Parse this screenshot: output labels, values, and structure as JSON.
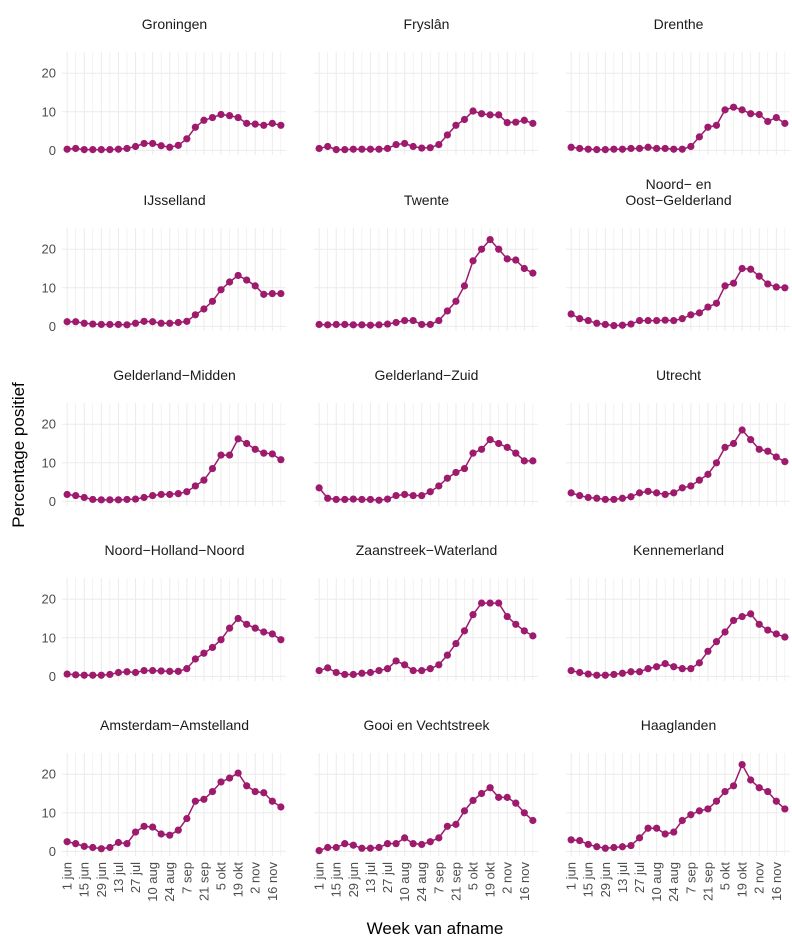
{
  "chart_data": {
    "type": "line",
    "x_label": "Week van afname",
    "y_label": "Percentage positief",
    "categories": [
      "1 jun",
      null,
      "15 jun",
      null,
      "29 jun",
      null,
      "13 jul",
      null,
      "27 jul",
      null,
      "10 aug",
      null,
      "24 aug",
      null,
      "7 sep",
      null,
      "21 sep",
      null,
      "5 okt",
      null,
      "19 okt",
      null,
      "2 nov",
      null,
      "16 nov",
      null
    ],
    "ylim": [
      -1.2,
      25.5
    ],
    "yticks": [
      0,
      10,
      20
    ],
    "grid": true,
    "color": "#9e1a6c",
    "panels": [
      {
        "title": "Groningen",
        "values": [
          0.3,
          0.5,
          0.2,
          0.2,
          0.2,
          0.2,
          0.3,
          0.5,
          1,
          1.8,
          1.8,
          1.2,
          0.8,
          1.3,
          3,
          6,
          7.8,
          8.5,
          9.3,
          9,
          8.5,
          7,
          6.8,
          6.5,
          7,
          6.5
        ]
      },
      {
        "title": "Fryslân",
        "values": [
          0.5,
          1,
          0.2,
          0.2,
          0.3,
          0.3,
          0.3,
          0.3,
          0.5,
          1.5,
          1.8,
          1,
          0.6,
          0.7,
          1.5,
          4,
          6.5,
          8,
          10.2,
          9.5,
          9.2,
          9.2,
          7.2,
          7.3,
          7.8,
          7
        ]
      },
      {
        "title": "Drenthe",
        "values": [
          0.8,
          0.5,
          0.3,
          0.2,
          0.2,
          0.3,
          0.3,
          0.5,
          0.5,
          0.8,
          0.5,
          0.5,
          0.3,
          0.3,
          1,
          3.5,
          6,
          6.5,
          10.5,
          11.2,
          10.5,
          9.5,
          9.3,
          7.5,
          8.5,
          7
        ]
      },
      {
        "title": "IJsselland",
        "values": [
          1.2,
          1.2,
          0.8,
          0.6,
          0.5,
          0.5,
          0.5,
          0.4,
          0.8,
          1.3,
          1.2,
          0.8,
          0.8,
          1,
          1.3,
          3,
          4.5,
          6.5,
          9.5,
          11.5,
          13.2,
          12,
          10.5,
          8.3,
          8.5,
          8.5
        ]
      },
      {
        "title": "Twente",
        "values": [
          0.5,
          0.4,
          0.5,
          0.5,
          0.4,
          0.4,
          0.3,
          0.4,
          0.6,
          1,
          1.5,
          1.5,
          0.5,
          0.5,
          1.5,
          4,
          6.5,
          10.5,
          17,
          20,
          22.5,
          20,
          17.5,
          17.2,
          15,
          13.8
        ]
      },
      {
        "title": "Noord− en\nOost−Gelderland",
        "values": [
          3.2,
          2,
          1.5,
          0.8,
          0.5,
          0.2,
          0.3,
          0.6,
          1.5,
          1.5,
          1.5,
          1.6,
          1.5,
          2,
          3,
          3.5,
          5,
          6,
          10.5,
          11.2,
          15,
          14.8,
          13,
          11,
          10.2,
          10
        ]
      },
      {
        "title": "Gelderland−Midden",
        "values": [
          1.8,
          1.5,
          1,
          0.5,
          0.4,
          0.4,
          0.4,
          0.5,
          0.6,
          1,
          1.5,
          1.8,
          1.8,
          2,
          2.5,
          4,
          5.5,
          8.5,
          12,
          12,
          16.2,
          15,
          13.5,
          12.5,
          12.3,
          10.8
        ]
      },
      {
        "title": "Gelderland−Zuid",
        "values": [
          3.5,
          0.8,
          0.5,
          0.5,
          0.6,
          0.5,
          0.5,
          0.3,
          0.6,
          1.5,
          1.8,
          1.5,
          1.5,
          2.5,
          4,
          6,
          7.5,
          8.5,
          12.5,
          13.5,
          16,
          15,
          14,
          12.5,
          10.5,
          10.5
        ]
      },
      {
        "title": "Utrecht",
        "values": [
          2.2,
          1.5,
          1,
          0.8,
          0.5,
          0.5,
          0.8,
          1.2,
          2.2,
          2.6,
          2.2,
          1.8,
          2.2,
          3.5,
          4,
          5.5,
          7,
          10,
          14,
          15,
          18.5,
          16,
          13.5,
          13,
          11.5,
          10.3
        ]
      },
      {
        "title": "Noord−Holland−Noord",
        "values": [
          0.6,
          0.4,
          0.3,
          0.3,
          0.3,
          0.5,
          1,
          1.2,
          1,
          1.5,
          1.5,
          1.4,
          1.3,
          1.3,
          2,
          4.5,
          6,
          7.5,
          9.5,
          12.5,
          15,
          13.5,
          12.5,
          11.5,
          11,
          9.5
        ]
      },
      {
        "title": "Zaanstreek−Waterland",
        "values": [
          1.5,
          2.2,
          1,
          0.5,
          0.5,
          0.8,
          1,
          1.5,
          2,
          4,
          3,
          1.5,
          1.5,
          2,
          3,
          5.5,
          8.5,
          11.8,
          16,
          19,
          19,
          19,
          15.5,
          13.5,
          11.8,
          10.5
        ]
      },
      {
        "title": "Kennemerland",
        "values": [
          1.5,
          1,
          0.6,
          0.3,
          0.3,
          0.5,
          0.8,
          1.2,
          1.2,
          2,
          2.5,
          3.3,
          2.5,
          2,
          2,
          3.5,
          6.5,
          9,
          11.5,
          14.5,
          15.5,
          16.2,
          13.5,
          12,
          11,
          10.2
        ]
      },
      {
        "title": "Amsterdam−Amstelland",
        "values": [
          2.5,
          2,
          1.3,
          1,
          0.7,
          1,
          2.3,
          2,
          5,
          6.5,
          6.3,
          4.5,
          4.2,
          5.5,
          8.5,
          13,
          13.5,
          15.5,
          18,
          19,
          20.3,
          17,
          15.5,
          15.2,
          13,
          11.5
        ]
      },
      {
        "title": "Gooi en Vechtstreek",
        "values": [
          0.2,
          1,
          1,
          2,
          1.6,
          0.8,
          0.8,
          1,
          2,
          2,
          3.5,
          2,
          1.8,
          2.5,
          3.5,
          6.5,
          7,
          10.5,
          13.2,
          15,
          16.5,
          14,
          14,
          12.5,
          10,
          8
        ]
      },
      {
        "title": "Haaglanden",
        "values": [
          3,
          2.8,
          1.8,
          1.2,
          0.8,
          1,
          1.2,
          1.5,
          3.5,
          6,
          6,
          4.5,
          5,
          8,
          9.5,
          10.5,
          11,
          13,
          15.5,
          17,
          22.5,
          18.5,
          16.5,
          15.5,
          13,
          11
        ]
      }
    ]
  }
}
